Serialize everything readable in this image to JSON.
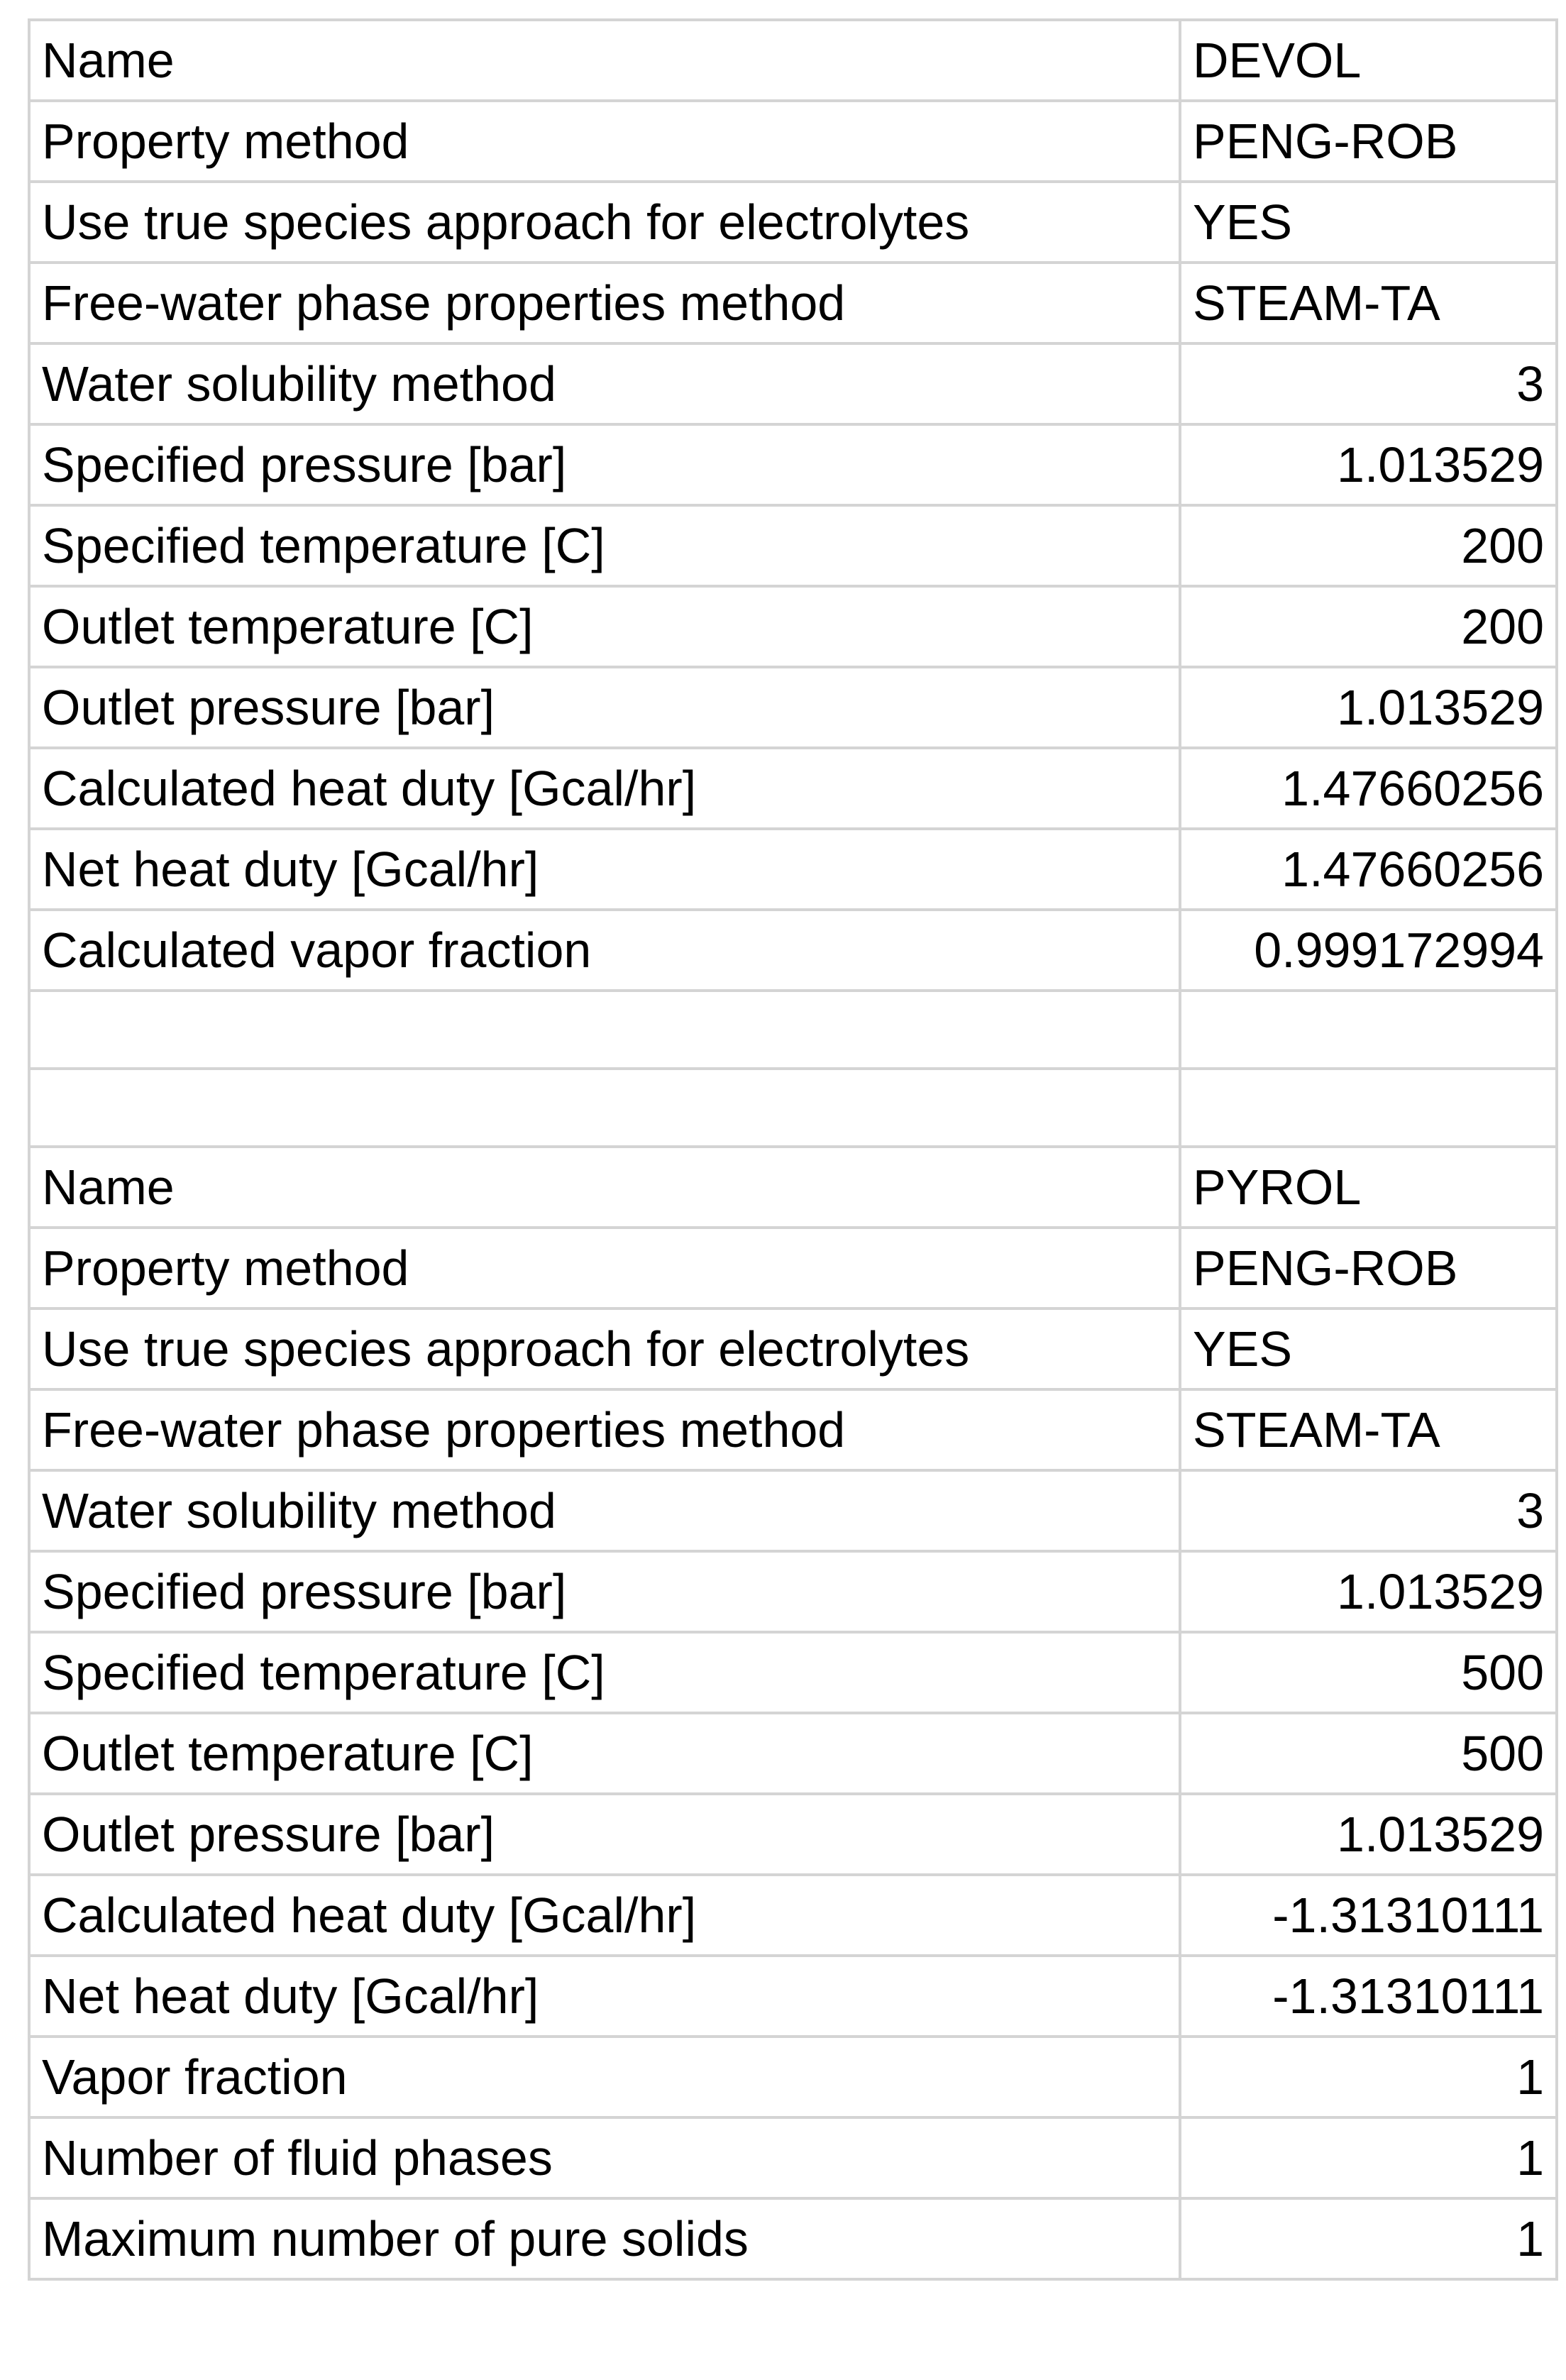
{
  "blocks": [
    {
      "rows": [
        {
          "label": "Name",
          "value": "DEVOL",
          "align": "left"
        },
        {
          "label": "Property method",
          "value": "PENG-ROB",
          "align": "left"
        },
        {
          "label": "Use true species approach for electrolytes",
          "value": "YES",
          "align": "left"
        },
        {
          "label": "Free-water phase properties method",
          "value": "STEAM-TA",
          "align": "left"
        },
        {
          "label": "Water solubility method",
          "value": "3",
          "align": "right"
        },
        {
          "label": "Specified pressure [bar]",
          "value": "1.013529",
          "align": "right"
        },
        {
          "label": "Specified temperature [C]",
          "value": "200",
          "align": "right"
        },
        {
          "label": "Outlet temperature [C]",
          "value": "200",
          "align": "right"
        },
        {
          "label": "Outlet pressure [bar]",
          "value": "1.013529",
          "align": "right"
        },
        {
          "label": "Calculated heat duty [Gcal/hr]",
          "value": "1.47660256",
          "align": "right"
        },
        {
          "label": "Net heat duty [Gcal/hr]",
          "value": "1.47660256",
          "align": "right"
        },
        {
          "label": "Calculated vapor fraction",
          "value": "0.999172994",
          "align": "right"
        }
      ]
    },
    {
      "rows": [
        {
          "label": "Name",
          "value": "PYROL",
          "align": "left"
        },
        {
          "label": "Property method",
          "value": "PENG-ROB",
          "align": "left"
        },
        {
          "label": "Use true species approach for electrolytes",
          "value": "YES",
          "align": "left"
        },
        {
          "label": "Free-water phase properties method",
          "value": "STEAM-TA",
          "align": "left"
        },
        {
          "label": "Water solubility method",
          "value": "3",
          "align": "right"
        },
        {
          "label": "Specified pressure [bar]",
          "value": "1.013529",
          "align": "right"
        },
        {
          "label": "Specified temperature [C]",
          "value": "500",
          "align": "right"
        },
        {
          "label": "Outlet temperature [C]",
          "value": "500",
          "align": "right"
        },
        {
          "label": "Outlet pressure [bar]",
          "value": "1.013529",
          "align": "right"
        },
        {
          "label": "Calculated heat duty [Gcal/hr]",
          "value": "-1.31310111",
          "align": "right"
        },
        {
          "label": "Net heat duty [Gcal/hr]",
          "value": "-1.31310111",
          "align": "right"
        },
        {
          "label": "Vapor fraction",
          "value": "1",
          "align": "right"
        },
        {
          "label": "Number of fluid phases",
          "value": "1",
          "align": "right"
        },
        {
          "label": "Maximum number of pure solids",
          "value": "1",
          "align": "right"
        }
      ]
    }
  ],
  "colors": {
    "gridline": "#d4d4d4",
    "text": "#000000",
    "background": "#ffffff"
  }
}
